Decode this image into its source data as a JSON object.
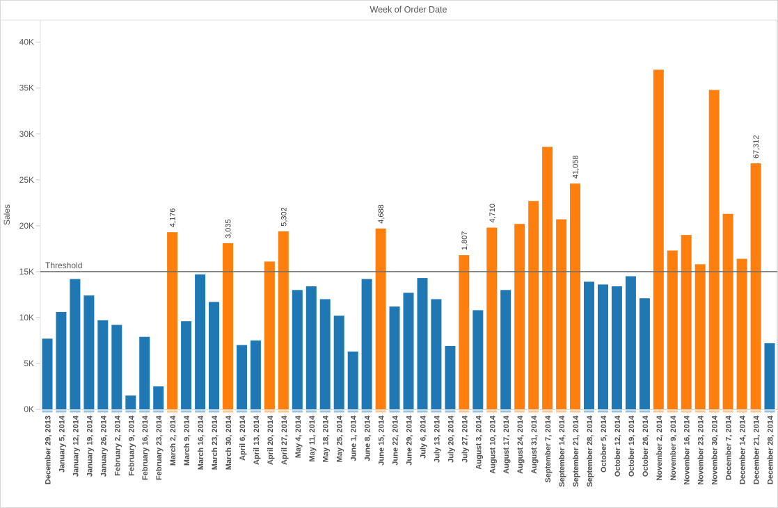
{
  "header": {
    "title": "Week of Order Date"
  },
  "chart_data": {
    "type": "bar",
    "title": "Week of Order Date",
    "xlabel": "Week of Order Date",
    "ylabel": "Sales",
    "grid": false,
    "legend": "none",
    "y_ticks": [
      "0K",
      "5K",
      "10K",
      "15K",
      "20K",
      "25K",
      "30K",
      "35K",
      "40K"
    ],
    "y_tick_values": [
      0,
      5000,
      10000,
      15000,
      20000,
      25000,
      30000,
      35000,
      40000
    ],
    "ylim": [
      0,
      42400
    ],
    "categories": [
      "December 29, 2013",
      "January 5, 2014",
      "January 12, 2014",
      "January 19, 2014",
      "January 26, 2014",
      "February 2, 2014",
      "February 9, 2014",
      "February 16, 2014",
      "February 23, 2014",
      "March 2, 2014",
      "March 9, 2014",
      "March 16, 2014",
      "March 23, 2014",
      "March 30, 2014",
      "April 6, 2014",
      "April 13, 2014",
      "April 20, 2014",
      "April 27, 2014",
      "May 4, 2014",
      "May 11, 2014",
      "May 18, 2014",
      "May 25, 2014",
      "June 1, 2014",
      "June 8, 2014",
      "June 15, 2014",
      "June 22, 2014",
      "June 29, 2014",
      "July 6, 2014",
      "July 13, 2014",
      "July 20, 2014",
      "July 27, 2014",
      "August 3, 2014",
      "August 10, 2014",
      "August 17, 2014",
      "August 24, 2014",
      "August 31, 2014",
      "September 7, 2014",
      "September 14, 2014",
      "September 21, 2014",
      "September 28, 2014",
      "October 5, 2014",
      "October 12, 2014",
      "October 19, 2014",
      "October 26, 2014",
      "November 2, 2014",
      "November 9, 2014",
      "November 16, 2014",
      "November 23, 2014",
      "November 30, 2014",
      "December 7, 2014",
      "December 14, 2014",
      "December 21, 2014",
      "December 28, 2014"
    ],
    "values": [
      7700,
      10600,
      14200,
      12400,
      9700,
      9200,
      1500,
      7900,
      2500,
      19300,
      9600,
      14700,
      11700,
      18100,
      7000,
      7500,
      16100,
      19400,
      13000,
      13400,
      12000,
      10200,
      6300,
      14200,
      19700,
      11200,
      12700,
      14300,
      12000,
      6900,
      16800,
      10800,
      19800,
      13000,
      20200,
      22700,
      28600,
      20700,
      24600,
      13900,
      13600,
      13400,
      14500,
      12100,
      37000,
      17300,
      19000,
      15800,
      34800,
      21300,
      16400,
      26800,
      7200
    ],
    "bar_labels": {
      "9": "4,176",
      "13": "3,035",
      "17": "5,302",
      "24": "4,688",
      "30": "1,807",
      "32": "4,710",
      "38": "41,058",
      "51": "67,312"
    },
    "threshold": {
      "label": "Threshold",
      "value": 15000
    },
    "colors": {
      "below_threshold": "#1f77b4",
      "above_threshold": "#ff7f0e",
      "threshold_line": "#6f6f6f",
      "axis_text": "#555555",
      "tick_mark": "#c9c9c9"
    }
  }
}
